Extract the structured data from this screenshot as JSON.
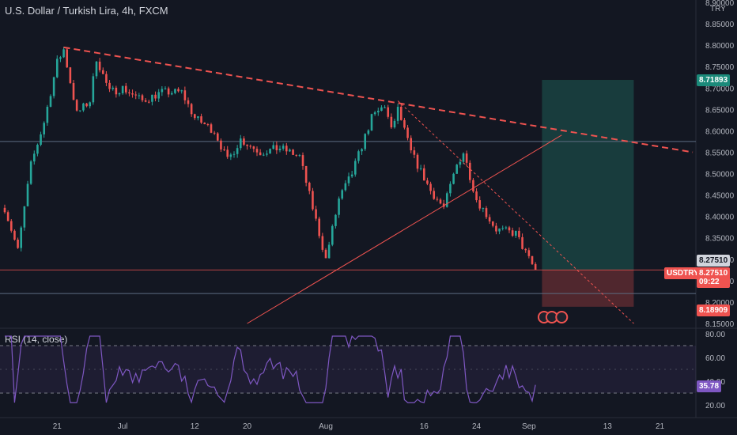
{
  "header": {
    "symbol_title": "U.S. Dollar / Turkish Lira, 4h, FXCM",
    "currency": "TRY"
  },
  "rsi": {
    "title": "RSI (14, close)",
    "value_label": "35.78",
    "levels": [
      80,
      60,
      40,
      20
    ],
    "upper_band": 70,
    "lower_band": 30
  },
  "price_axis": {
    "ticks": [
      "8.90000",
      "8.85000",
      "8.80000",
      "8.75000",
      "8.70000",
      "8.65000",
      "8.60000",
      "8.55000",
      "8.50000",
      "8.45000",
      "8.40000",
      "8.35000",
      "8.30000",
      "8.25000",
      "8.20000",
      "8.15000"
    ]
  },
  "time_axis": {
    "labels": [
      "21",
      "Jul",
      "12",
      "20",
      "Aug",
      "16",
      "24",
      "Sep",
      "13",
      "21"
    ]
  },
  "tags": {
    "target": "8.71893",
    "last": "8.27510",
    "symbol": "USDTRY",
    "current": "8.27510",
    "countdown": "09:22",
    "stop": "8.18909"
  },
  "colors": {
    "up": "#26a69a",
    "down": "#ef5350",
    "rsi": "#7e57c2",
    "target_zone": "#1b4a47",
    "stop_zone": "#5c2a30",
    "trendline": "#ef5350"
  },
  "chart_data": {
    "type": "candlestick",
    "title": "U.S. Dollar / Turkish Lira, 4h, FXCM",
    "y_unit": "TRY",
    "ylim": [
      8.14,
      8.92
    ],
    "x_range": [
      "Jun 13",
      "Sep 26"
    ],
    "close_path": [
      [
        "Jun 13",
        8.42
      ],
      [
        "Jun 15",
        8.32
      ],
      [
        "Jun 17",
        8.52
      ],
      [
        "Jun 19",
        8.62
      ],
      [
        "Jun 21",
        8.76
      ],
      [
        "Jun 22",
        8.79
      ],
      [
        "Jun 24",
        8.64
      ],
      [
        "Jun 26",
        8.67
      ],
      [
        "Jun 27",
        8.77
      ],
      [
        "Jun 29",
        8.69
      ],
      [
        "Jul 1",
        8.7
      ],
      [
        "Jul 4",
        8.67
      ],
      [
        "Jul 7",
        8.69
      ],
      [
        "Jul 10",
        8.69
      ],
      [
        "Jul 12",
        8.63
      ],
      [
        "Jul 15",
        8.6
      ],
      [
        "Jul 17",
        8.53
      ],
      [
        "Jul 19",
        8.58
      ],
      [
        "Jul 22",
        8.55
      ],
      [
        "Jul 25",
        8.56
      ],
      [
        "Jul 28",
        8.54
      ],
      [
        "Jul 30",
        8.42
      ],
      [
        "Aug 1",
        8.3
      ],
      [
        "Aug 3",
        8.44
      ],
      [
        "Aug 5",
        8.5
      ],
      [
        "Aug 8",
        8.63
      ],
      [
        "Aug 10",
        8.66
      ],
      [
        "Aug 11",
        8.6
      ],
      [
        "Aug 12",
        8.65
      ],
      [
        "Aug 14",
        8.55
      ],
      [
        "Aug 17",
        8.46
      ],
      [
        "Aug 19",
        8.42
      ],
      [
        "Aug 21",
        8.52
      ],
      [
        "Aug 22",
        8.55
      ],
      [
        "Aug 24",
        8.44
      ],
      [
        "Aug 27",
        8.37
      ],
      [
        "Aug 30",
        8.36
      ],
      [
        "Sep 1",
        8.3
      ],
      [
        "Sep 2",
        8.275
      ]
    ],
    "annotations": [
      {
        "type": "trendline",
        "style": "dashed",
        "from": [
          "Jun 22",
          8.795
        ],
        "to": [
          "Sep 26",
          8.55
        ]
      },
      {
        "type": "trendline",
        "style": "solid",
        "from": [
          "Jul 20",
          8.15
        ],
        "to": [
          "Sep 6",
          8.59
        ]
      },
      {
        "type": "trendline",
        "style": "dotted",
        "from": [
          "Aug 12",
          8.67
        ],
        "to": [
          "Sep 17",
          8.15
        ]
      },
      {
        "type": "hline",
        "value": 8.575
      },
      {
        "type": "hline",
        "value": 8.22
      },
      {
        "type": "position",
        "entry": 8.2751,
        "target": 8.71893,
        "stop": 8.18909,
        "from": "Sep 3",
        "to": "Sep 17"
      }
    ]
  }
}
